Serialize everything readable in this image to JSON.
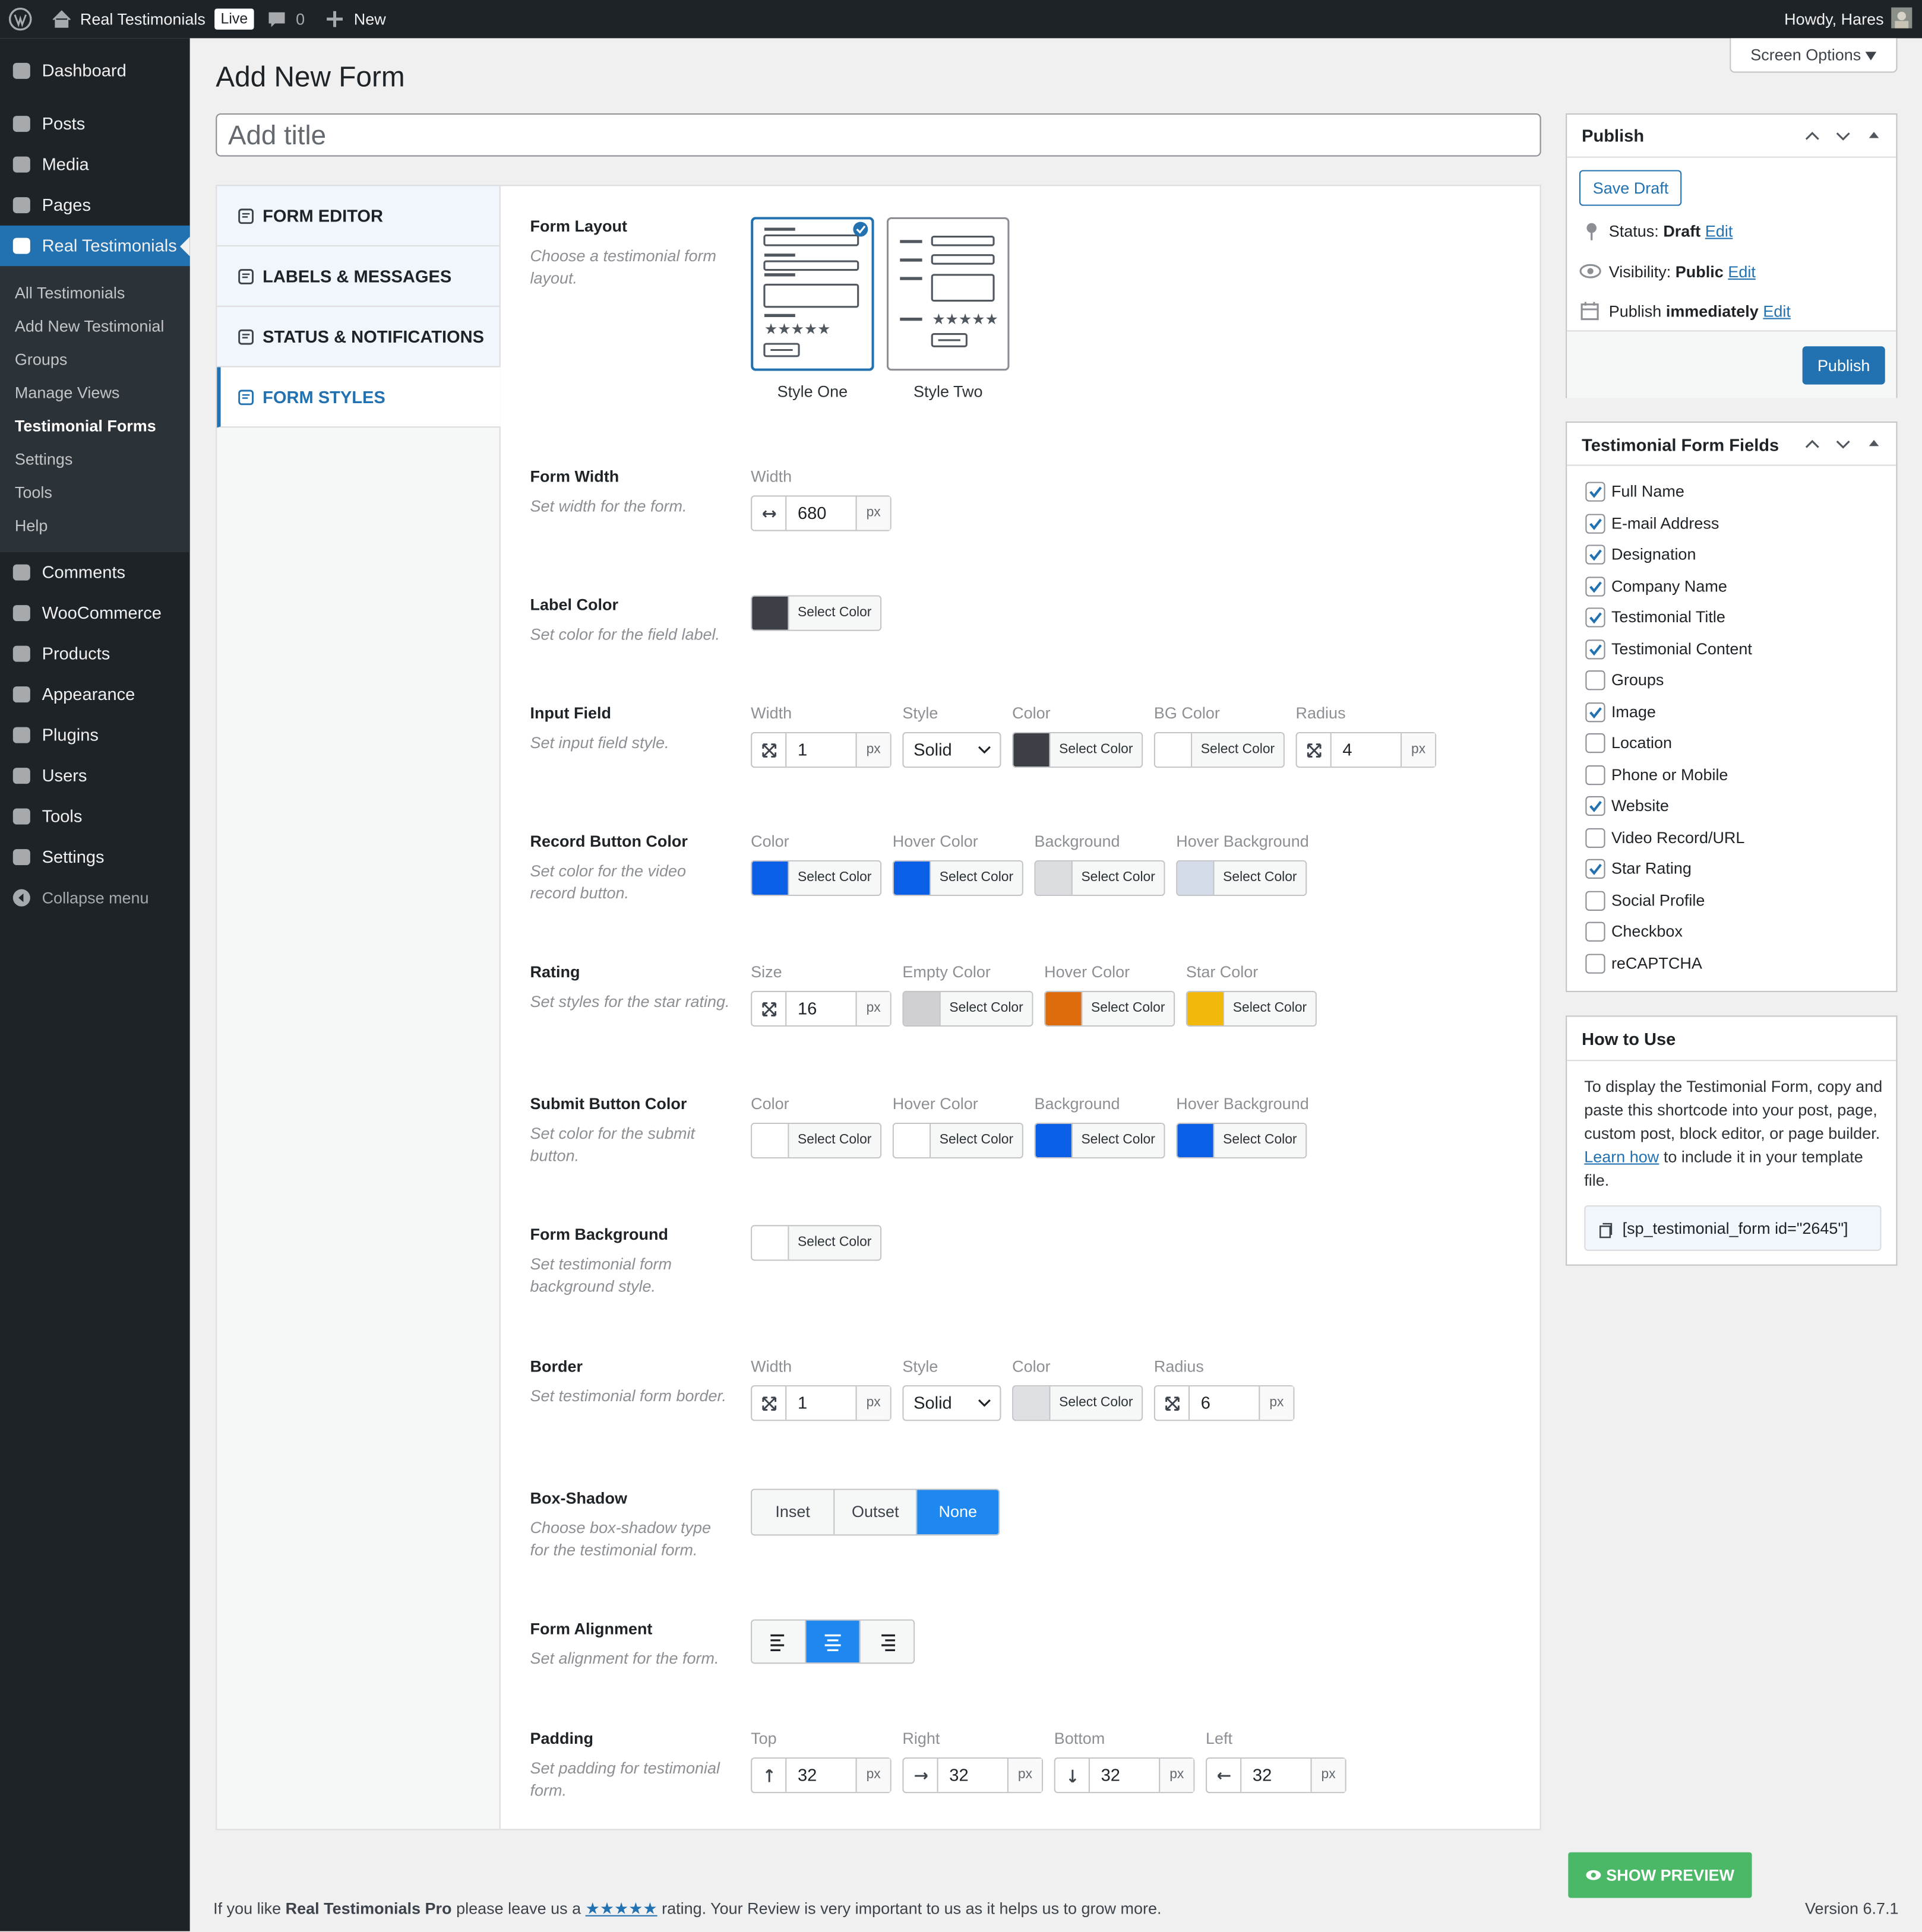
{
  "admin_bar": {
    "site_name": "Real Testimonials",
    "status": "Live",
    "comments": "0",
    "new": "New",
    "greeting": "Howdy, Hares"
  },
  "menu": {
    "items": [
      {
        "label": "Dashboard"
      },
      {
        "label": "Posts"
      },
      {
        "label": "Media"
      },
      {
        "label": "Pages"
      },
      {
        "label": "Real Testimonials",
        "active": true,
        "submenu": [
          "All Testimonials",
          "Add New Testimonial",
          "Groups",
          "Manage Views",
          "Testimonial Forms",
          "Settings",
          "Tools",
          "Help"
        ],
        "current": 4
      },
      {
        "label": "Comments"
      },
      {
        "label": "WooCommerce"
      },
      {
        "label": "Products"
      },
      {
        "label": "Appearance"
      },
      {
        "label": "Plugins"
      },
      {
        "label": "Users"
      },
      {
        "label": "Tools"
      },
      {
        "label": "Settings"
      },
      {
        "label": "Collapse menu"
      }
    ]
  },
  "page": {
    "title": "Add New Form",
    "screen_options": "Screen Options",
    "title_placeholder": "Add title"
  },
  "settings": {
    "tabs": [
      "FORM EDITOR",
      "LABELS & MESSAGES",
      "STATUS & NOTIFICATIONS",
      "FORM STYLES"
    ],
    "active_tab": 3,
    "rows": [
      {
        "label": "Form Layout",
        "desc": "Choose a testimonial form layout.",
        "controls": [
          {
            "type": "layout",
            "options": [
              "Style One",
              "Style Two"
            ],
            "selected": 0
          }
        ]
      },
      {
        "label": "Form Width",
        "desc": "Set width for the form.",
        "controls": [
          {
            "type": "number",
            "caption": "Width",
            "icon": "width",
            "value": 680,
            "unit": "px"
          }
        ]
      },
      {
        "label": "Label Color",
        "desc": "Set color for the field label.",
        "controls": [
          {
            "type": "color",
            "color": "#3c4046",
            "button": "Select Color"
          }
        ]
      },
      {
        "label": "Input Field",
        "desc": "Set input field style.",
        "controls": [
          {
            "type": "number",
            "caption": "Width",
            "icon": "resize",
            "value": 1,
            "unit": "px"
          },
          {
            "type": "select",
            "caption": "Style",
            "value": "Solid"
          },
          {
            "type": "color",
            "caption": "Color",
            "color": "#3c4046",
            "button": "Select Color"
          },
          {
            "type": "color",
            "caption": "BG Color",
            "color": "#ffffff",
            "button": "Select Color"
          },
          {
            "type": "number",
            "caption": "Radius",
            "icon": "resize",
            "value": 4,
            "unit": "px"
          }
        ]
      },
      {
        "label": "Record Button Color",
        "desc": "Set color for the video record button.",
        "controls": [
          {
            "type": "color",
            "caption": "Color",
            "color": "#0b5ee6",
            "button": "Select Color"
          },
          {
            "type": "color",
            "caption": "Hover Color",
            "color": "#0b5ee6",
            "button": "Select Color"
          },
          {
            "type": "color",
            "caption": "Background",
            "color": "#dcdde0",
            "button": "Select Color"
          },
          {
            "type": "color",
            "caption": "Hover Background",
            "color": "#d3dce8",
            "button": "Select Color"
          }
        ]
      },
      {
        "label": "Rating",
        "desc": "Set styles for the star rating.",
        "controls": [
          {
            "type": "number",
            "caption": "Size",
            "icon": "resize",
            "value": 16,
            "unit": "px"
          },
          {
            "type": "color",
            "caption": "Empty Color",
            "color": "#d0d0d2",
            "button": "Select Color"
          },
          {
            "type": "color",
            "caption": "Hover Color",
            "color": "#de6b0c",
            "button": "Select Color"
          },
          {
            "type": "color",
            "caption": "Star Color",
            "color": "#f0b90b",
            "button": "Select Color"
          }
        ]
      },
      {
        "label": "Submit Button Color",
        "desc": "Set color for the submit button.",
        "controls": [
          {
            "type": "color",
            "caption": "Color",
            "color": "#ffffff",
            "button": "Select Color"
          },
          {
            "type": "color",
            "caption": "Hover Color",
            "color": "#ffffff",
            "button": "Select Color"
          },
          {
            "type": "color",
            "caption": "Background",
            "color": "#0b5ee6",
            "button": "Select Color"
          },
          {
            "type": "color",
            "caption": "Hover Background",
            "color": "#0b5ee6",
            "button": "Select Color"
          }
        ]
      },
      {
        "label": "Form Background",
        "desc": "Set testimonial form background style.",
        "controls": [
          {
            "type": "color",
            "color": "#ffffff",
            "button": "Select Color"
          }
        ]
      },
      {
        "label": "Border",
        "desc": "Set testimonial form border.",
        "controls": [
          {
            "type": "number",
            "caption": "Width",
            "icon": "resize",
            "value": 1,
            "unit": "px"
          },
          {
            "type": "select",
            "caption": "Style",
            "value": "Solid"
          },
          {
            "type": "color",
            "caption": "Color",
            "color": "#dfe0e3",
            "button": "Select Color"
          },
          {
            "type": "number",
            "caption": "Radius",
            "icon": "resize",
            "value": 6,
            "unit": "px"
          }
        ]
      },
      {
        "label": "Box-Shadow",
        "desc": "Choose box-shadow type for the testimonial form.",
        "controls": [
          {
            "type": "buttonset",
            "options": [
              "Inset",
              "Outset",
              "None"
            ],
            "active": 2
          }
        ]
      },
      {
        "label": "Form Alignment",
        "desc": "Set alignment for the form.",
        "controls": [
          {
            "type": "align",
            "active": 1
          }
        ]
      },
      {
        "label": "Padding",
        "desc": "Set padding for testimonial form.",
        "controls": [
          {
            "type": "number",
            "caption": "Top",
            "icon": "up",
            "value": 32,
            "unit": "px"
          },
          {
            "type": "number",
            "caption": "Right",
            "icon": "right",
            "value": 32,
            "unit": "px"
          },
          {
            "type": "number",
            "caption": "Bottom",
            "icon": "down",
            "value": 32,
            "unit": "px"
          },
          {
            "type": "number",
            "caption": "Left",
            "icon": "left",
            "value": 32,
            "unit": "px"
          }
        ]
      }
    ]
  },
  "publish": {
    "title": "Publish",
    "save_draft": "Save Draft",
    "status_label": "Status:",
    "status": "Draft",
    "visibility_label": "Visibility:",
    "visibility": "Public",
    "publish_label": "Publish",
    "publish_when": "immediately",
    "edit": "Edit",
    "button": "Publish"
  },
  "form_fields": {
    "title": "Testimonial Form Fields",
    "fields": [
      {
        "label": "Full Name",
        "checked": true
      },
      {
        "label": "E-mail Address",
        "checked": true
      },
      {
        "label": "Designation",
        "checked": true
      },
      {
        "label": "Company Name",
        "checked": true
      },
      {
        "label": "Testimonial Title",
        "checked": true
      },
      {
        "label": "Testimonial Content",
        "checked": true
      },
      {
        "label": "Groups",
        "checked": false
      },
      {
        "label": "Image",
        "checked": true
      },
      {
        "label": "Location",
        "checked": false
      },
      {
        "label": "Phone or Mobile",
        "checked": false
      },
      {
        "label": "Website",
        "checked": true
      },
      {
        "label": "Video Record/URL",
        "checked": false
      },
      {
        "label": "Star Rating",
        "checked": true
      },
      {
        "label": "Social Profile",
        "checked": false
      },
      {
        "label": "Checkbox",
        "checked": false
      },
      {
        "label": "reCAPTCHA",
        "checked": false
      }
    ]
  },
  "how_to_use": {
    "title": "How to Use",
    "text": "To display the Testimonial Form, copy and paste this shortcode into your post, page, custom post, block editor, or page builder.",
    "link": "Learn how",
    "text_after": "to include it in your template file.",
    "shortcode": "[sp_testimonial_form id=\"2645\"]"
  },
  "show_preview": "SHOW PREVIEW",
  "footer": {
    "before": "If you like",
    "brand": "Real Testimonials Pro",
    "middle": "please leave us a",
    "stars": "★★★★★",
    "after": "rating. Your Review is very important to us as it helps us to grow more.",
    "version": "Version 6.7.1"
  }
}
